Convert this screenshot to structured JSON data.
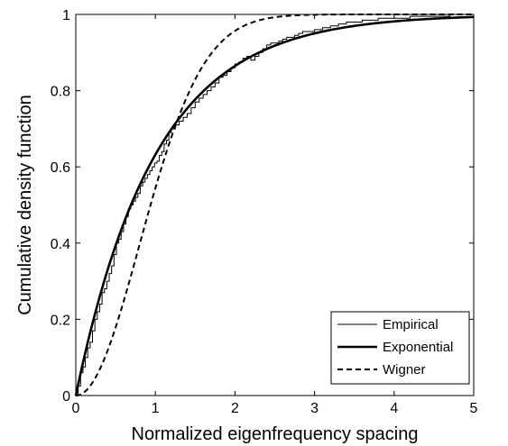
{
  "chart_data": {
    "type": "line",
    "title": "",
    "xlabel": "Normalized eigenfrequency spacing",
    "ylabel": "Cumulative density function",
    "xlim": [
      0,
      5
    ],
    "ylim": [
      0,
      1
    ],
    "x_ticks": [
      0,
      1,
      2,
      3,
      4,
      5
    ],
    "y_ticks": [
      0,
      0.2,
      0.4,
      0.6,
      0.8,
      1
    ],
    "x_tick_labels": [
      "0",
      "1",
      "2",
      "3",
      "4",
      "5"
    ],
    "y_tick_labels": [
      "0",
      "0.2",
      "0.4",
      "0.6",
      "0.8",
      "1"
    ],
    "grid": false,
    "legend_position": "bottom-right",
    "series": [
      {
        "name": "Empirical",
        "style": "thin-solid",
        "x": [
          0,
          0.03,
          0.06,
          0.09,
          0.12,
          0.15,
          0.18,
          0.21,
          0.24,
          0.27,
          0.3,
          0.33,
          0.36,
          0.39,
          0.42,
          0.45,
          0.48,
          0.51,
          0.54,
          0.57,
          0.6,
          0.63,
          0.66,
          0.69,
          0.72,
          0.75,
          0.78,
          0.81,
          0.84,
          0.87,
          0.9,
          0.93,
          0.96,
          0.99,
          1.02,
          1.05,
          1.08,
          1.11,
          1.14,
          1.17,
          1.2,
          1.25,
          1.3,
          1.35,
          1.4,
          1.45,
          1.5,
          1.55,
          1.6,
          1.65,
          1.7,
          1.75,
          1.8,
          1.85,
          1.9,
          1.95,
          2.0,
          2.05,
          2.1,
          2.15,
          2.2,
          2.25,
          2.3,
          2.35,
          2.4,
          2.45,
          2.5,
          2.55,
          2.6,
          2.65,
          2.7,
          2.75,
          2.8,
          2.85,
          2.9,
          3.0,
          3.1,
          3.2,
          3.3,
          3.4,
          3.5,
          3.6,
          3.7,
          3.8,
          3.9,
          4.0,
          4.1,
          4.2,
          4.3,
          4.4,
          4.5,
          4.6,
          4.7,
          4.8,
          4.9,
          5.0
        ],
        "y": [
          0,
          0.025,
          0.06,
          0.075,
          0.1,
          0.125,
          0.14,
          0.17,
          0.2,
          0.22,
          0.24,
          0.27,
          0.28,
          0.3,
          0.32,
          0.34,
          0.37,
          0.4,
          0.41,
          0.43,
          0.45,
          0.47,
          0.49,
          0.5,
          0.51,
          0.52,
          0.53,
          0.55,
          0.56,
          0.57,
          0.58,
          0.59,
          0.6,
          0.61,
          0.615,
          0.63,
          0.64,
          0.66,
          0.67,
          0.69,
          0.7,
          0.71,
          0.72,
          0.73,
          0.74,
          0.755,
          0.77,
          0.78,
          0.79,
          0.8,
          0.81,
          0.82,
          0.835,
          0.84,
          0.85,
          0.86,
          0.87,
          0.875,
          0.885,
          0.89,
          0.88,
          0.89,
          0.9,
          0.91,
          0.92,
          0.925,
          0.925,
          0.93,
          0.935,
          0.94,
          0.94,
          0.945,
          0.95,
          0.955,
          0.955,
          0.96,
          0.965,
          0.97,
          0.975,
          0.98,
          0.98,
          0.985,
          0.985,
          0.99,
          0.99,
          0.99,
          0.99,
          0.995,
          0.995,
          0.995,
          0.995,
          0.995,
          1.0,
          1.0,
          1.0,
          1.0
        ]
      },
      {
        "name": "Exponential",
        "style": "thick-solid",
        "function": "1 - exp(-x)"
      },
      {
        "name": "Wigner",
        "style": "dashed",
        "function": "1 - exp(-pi*x^2/4)"
      }
    ]
  }
}
